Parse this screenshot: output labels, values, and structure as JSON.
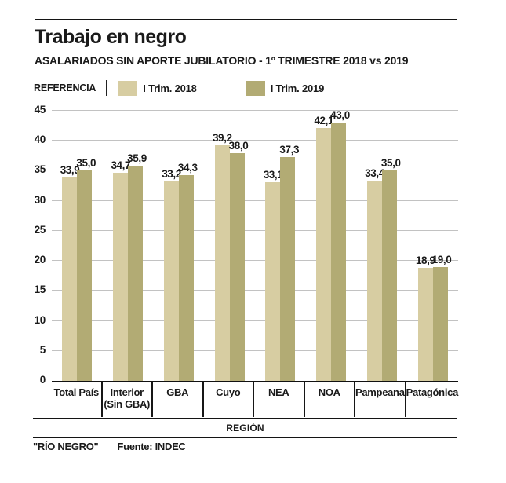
{
  "header": {
    "title": "Trabajo en negro",
    "subtitle": "ASALARIADOS SIN APORTE JUBILATORIO -  1º TRIMESTRE 2018 vs 2019"
  },
  "legend": {
    "label": "REFERENCIA",
    "items": [
      {
        "label": "I Trim. 2018",
        "color": "#d7cda2"
      },
      {
        "label": "I Trim. 2019",
        "color": "#b2ab74"
      }
    ]
  },
  "chart_data": {
    "type": "bar",
    "title": "Trabajo en negro",
    "subtitle": "ASALARIADOS SIN APORTE JUBILATORIO - 1º TRIMESTRE 2018 vs 2019",
    "categories": [
      "Total País",
      "Interior\n(Sin GBA)",
      "GBA",
      "Cuyo",
      "NEA",
      "NOA",
      "Pampeana",
      "Patagónica"
    ],
    "series": [
      {
        "name": "I Trim. 2018",
        "color": "#d7cda2",
        "values": [
          33.9,
          34.7,
          33.2,
          39.2,
          33.1,
          42.1,
          33.4,
          18.9
        ],
        "labels": [
          "33,9",
          "34,7",
          "33,2",
          "39,2",
          "33,1",
          "42,1",
          "33,4",
          "18,9"
        ]
      },
      {
        "name": "I Trim. 2019",
        "color": "#b2ab74",
        "values": [
          35.0,
          35.9,
          34.3,
          38.0,
          37.3,
          43.0,
          35.0,
          19.0
        ],
        "labels": [
          "35,0",
          "35,9",
          "34,3",
          "38,0",
          "37,3",
          "43,0",
          "35,0",
          "19,0"
        ]
      }
    ],
    "xlabel": "REGIÓN",
    "ylabel": "",
    "ylim": [
      0,
      45
    ],
    "ytick_step": 5,
    "grid": true,
    "legend_position": "top",
    "grid_color": "#c2c2c2"
  },
  "footer": {
    "credit": "\"RÍO NEGRO\"",
    "source": "Fuente: INDEC"
  }
}
